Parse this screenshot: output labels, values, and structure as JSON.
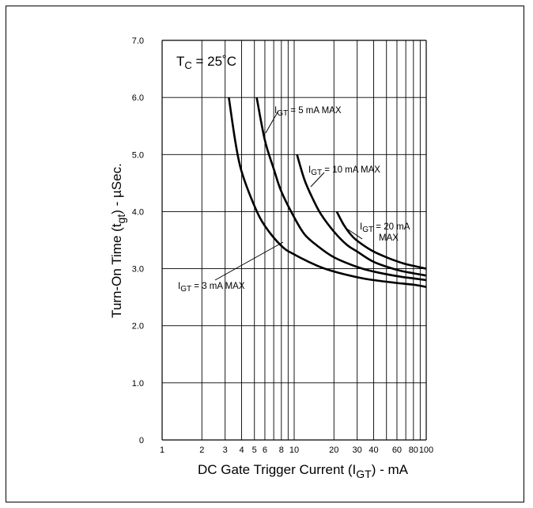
{
  "chart_data": {
    "type": "line",
    "title": "",
    "xlabel": "DC Gate Trigger Current (I_GT) - mA",
    "ylabel": "Turn-On Time (t_gt) - µSec.",
    "xscale": "log",
    "xlim": [
      1,
      100
    ],
    "ylim": [
      0,
      7
    ],
    "grid": true,
    "xtick_labels": [
      "1",
      "2",
      "3",
      "4",
      "5",
      "6",
      "8",
      "10",
      "20",
      "30",
      "40",
      "60",
      "80",
      "100"
    ],
    "ytick_labels": [
      "0",
      "1.0",
      "2.0",
      "3.0",
      "4.0",
      "5.0",
      "6.0",
      "7.0"
    ],
    "condition": {
      "main": "T",
      "sub": "C",
      "rest": " = 25˚C"
    },
    "series": [
      {
        "name": "I_GT = 3 mA MAX",
        "x": [
          3.2,
          3.6,
          4,
          5,
          6,
          8,
          10,
          15,
          20,
          30,
          40,
          60,
          80,
          100
        ],
        "y": [
          6.0,
          5.2,
          4.7,
          4.1,
          3.75,
          3.4,
          3.25,
          3.05,
          2.95,
          2.85,
          2.8,
          2.75,
          2.72,
          2.68
        ]
      },
      {
        "name": "I_GT = 5 mA MAX",
        "x": [
          5.2,
          6,
          7,
          8,
          10,
          12,
          15,
          20,
          30,
          40,
          60,
          80,
          100
        ],
        "y": [
          6.0,
          5.25,
          4.75,
          4.35,
          3.9,
          3.6,
          3.4,
          3.2,
          3.03,
          2.95,
          2.87,
          2.83,
          2.8
        ]
      },
      {
        "name": "I_GT = 10 mA MAX",
        "x": [
          10.5,
          12,
          14,
          16,
          20,
          25,
          30,
          40,
          60,
          80,
          100
        ],
        "y": [
          5.0,
          4.55,
          4.2,
          3.95,
          3.65,
          3.42,
          3.3,
          3.12,
          2.98,
          2.92,
          2.88
        ]
      },
      {
        "name": "I_GT = 20 mA MAX",
        "x": [
          21,
          24,
          28,
          33,
          40,
          50,
          60,
          70,
          80,
          100
        ],
        "y": [
          4.0,
          3.75,
          3.55,
          3.42,
          3.3,
          3.2,
          3.13,
          3.08,
          3.05,
          3.0
        ]
      }
    ],
    "annotations": [
      {
        "main": "I",
        "sub": "GT",
        "rest": " = 3 mA MAX"
      },
      {
        "main": "I",
        "sub": "GT",
        "rest": " = 5 mA MAX"
      },
      {
        "main": "I",
        "sub": "GT",
        "rest": " = 10 mA MAX"
      },
      {
        "main": "I",
        "sub": "GT",
        "rest": " = 20 mA",
        "line2": "MAX"
      }
    ],
    "axis_titles": {
      "x": {
        "a": "DC Gate Trigger Current (I",
        "sub": "GT",
        "b": ") - mA"
      },
      "y": {
        "a": "Turn-On Time (t",
        "sub": "gt",
        "b": ") - µSec."
      }
    }
  }
}
